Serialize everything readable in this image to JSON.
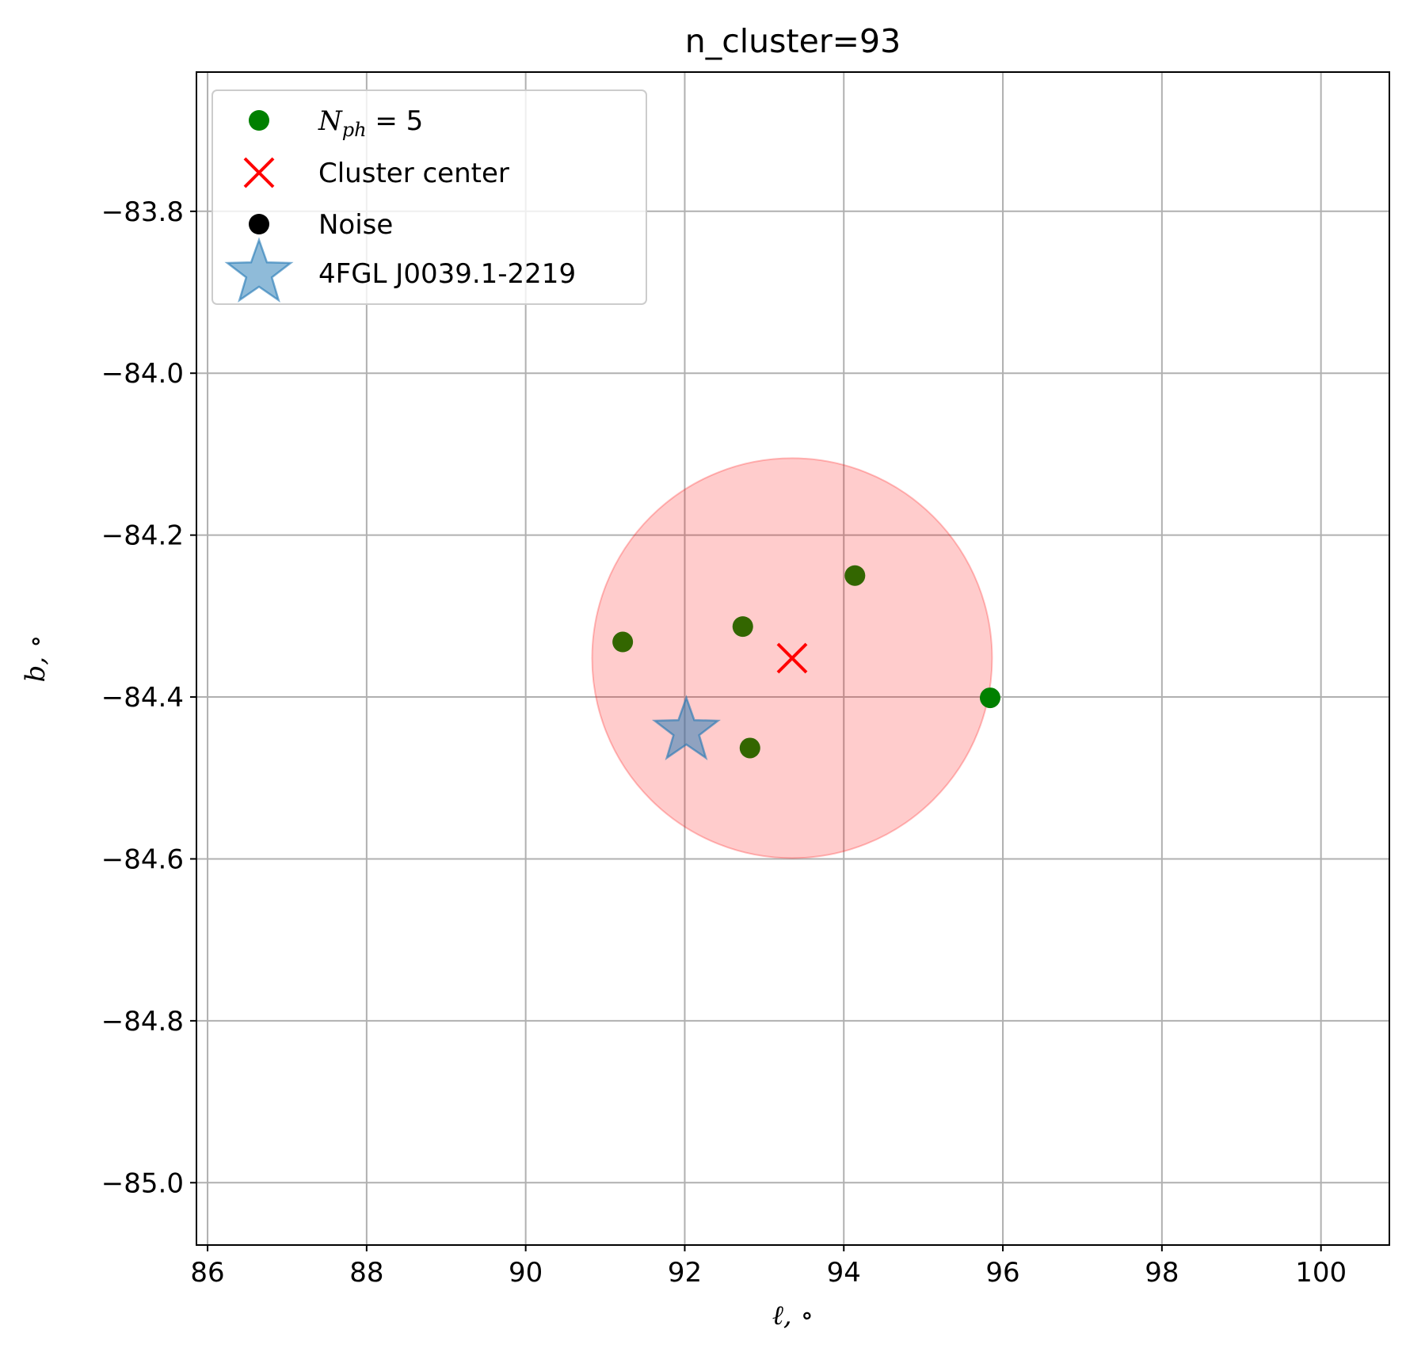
{
  "chart_data": {
    "type": "scatter",
    "title": "n_cluster=93",
    "xlabel": "ℓ, ∘",
    "ylabel": "b, ∘",
    "xlim": [
      85.86,
      100.86
    ],
    "ylim": [
      -85.077,
      -83.628
    ],
    "xticks": [
      86,
      88,
      90,
      92,
      94,
      96,
      98,
      100
    ],
    "xtick_labels": [
      "86",
      "88",
      "90",
      "92",
      "94",
      "96",
      "98",
      "100"
    ],
    "yticks": [
      -83.8,
      -84.0,
      -84.2,
      -84.4,
      -84.6,
      -84.8,
      -85.0
    ],
    "ytick_labels": [
      "−83.8",
      "−84.0",
      "−84.2",
      "−84.4",
      "−84.6",
      "−84.8",
      "−85.0"
    ],
    "grid": true,
    "legend_position": "upper-left",
    "series": [
      {
        "name": "N_ph = 5",
        "legend": {
          "symbol": "N",
          "subscript": "ph",
          "rest": " = 5"
        },
        "marker": "circle",
        "color": "#008000",
        "points": [
          {
            "x": 91.22,
            "y": -84.332
          },
          {
            "x": 92.73,
            "y": -84.313
          },
          {
            "x": 94.14,
            "y": -84.25
          },
          {
            "x": 95.84,
            "y": -84.401
          },
          {
            "x": 92.82,
            "y": -84.463
          }
        ]
      },
      {
        "name": "Cluster center",
        "marker": "x",
        "color": "#ff0000",
        "points": [
          {
            "x": 93.35,
            "y": -84.352
          }
        ]
      },
      {
        "name": "Noise",
        "marker": "circle",
        "color": "#000000",
        "points": []
      },
      {
        "name": "4FGL J0039.1-2219",
        "marker": "star",
        "color": "#1f77b4",
        "points": [
          {
            "x": 92.02,
            "y": -84.442
          }
        ]
      }
    ],
    "cluster_circle": {
      "center": {
        "x": 93.35,
        "y": -84.352
      },
      "radius_y": 0.247,
      "color": "#ff0000"
    }
  }
}
